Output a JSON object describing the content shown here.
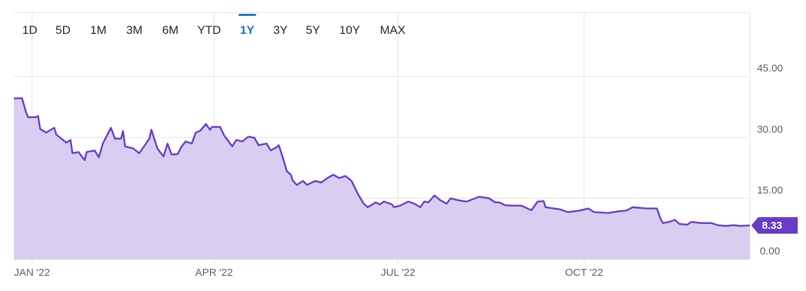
{
  "toolbar": {
    "buttons": [
      "1D",
      "5D",
      "1M",
      "3M",
      "6M",
      "YTD",
      "1Y",
      "3Y",
      "5Y",
      "10Y",
      "MAX"
    ],
    "active_index": 6
  },
  "chart_data": {
    "type": "area",
    "x": [
      -8,
      -4,
      -2,
      -1,
      3,
      4,
      5,
      8,
      12,
      13,
      18,
      20,
      21,
      24,
      27,
      28,
      32,
      34,
      36,
      40,
      42,
      45,
      46,
      47,
      51,
      54,
      59,
      60,
      63,
      66,
      68,
      70,
      73,
      75,
      77,
      80,
      82,
      84,
      87,
      89,
      90,
      94,
      96,
      100,
      102,
      105,
      108,
      111,
      113,
      117,
      119,
      122,
      123,
      125,
      127,
      129,
      130,
      132,
      135,
      137,
      141,
      144,
      147,
      150,
      153,
      156,
      159,
      162,
      165,
      167,
      171,
      173,
      175,
      179,
      180,
      183,
      187,
      190,
      193,
      195,
      197,
      200,
      203,
      206,
      208,
      212,
      216,
      219,
      222,
      227,
      230,
      232,
      235,
      238,
      243,
      246,
      248,
      251,
      254,
      255,
      259,
      262,
      266,
      272,
      276,
      279,
      286,
      291,
      295,
      298,
      305,
      308,
      310,
      312,
      313,
      316,
      319,
      321,
      325,
      327,
      332,
      337,
      340,
      344,
      348,
      351,
      356
    ],
    "series": [
      {
        "color": "#6a3bc8",
        "fill": "#d9cef1",
        "values": [
          39.6,
          39.7,
          36.3,
          35.0,
          35.0,
          35.3,
          32.1,
          31.2,
          32.4,
          30.7,
          28.7,
          29.4,
          26.1,
          26.4,
          24.4,
          26.4,
          26.8,
          25.1,
          28.5,
          32.4,
          29.7,
          29.7,
          31.6,
          27.8,
          27.3,
          26.1,
          29.7,
          31.9,
          27.3,
          25.3,
          28.5,
          25.8,
          25.9,
          27.8,
          29.0,
          28.5,
          31.2,
          31.6,
          33.3,
          31.9,
          32.6,
          32.6,
          30.5,
          27.8,
          29.4,
          29.0,
          30.2,
          29.9,
          28.1,
          28.5,
          26.8,
          27.6,
          28.1,
          25.1,
          21.7,
          20.8,
          19.3,
          18.3,
          19.3,
          18.3,
          19.3,
          18.9,
          20.0,
          20.8,
          20.0,
          20.5,
          19.3,
          16.2,
          13.7,
          12.8,
          14.0,
          13.5,
          14.2,
          13.5,
          12.8,
          13.2,
          14.2,
          13.7,
          12.8,
          14.2,
          14.0,
          15.7,
          14.5,
          13.7,
          15.0,
          14.5,
          14.2,
          14.8,
          15.4,
          15.0,
          14.0,
          14.0,
          13.3,
          13.2,
          13.2,
          12.5,
          12.1,
          14.2,
          14.3,
          12.8,
          12.5,
          12.3,
          11.6,
          12.0,
          12.5,
          11.6,
          11.4,
          11.8,
          12.0,
          12.8,
          12.5,
          12.5,
          12.5,
          9.7,
          8.9,
          9.2,
          9.7,
          8.7,
          8.5,
          9.2,
          8.9,
          8.9,
          8.4,
          8.2,
          8.4,
          8.2,
          8.33
        ]
      }
    ],
    "xlim": [
      -8,
      356
    ],
    "xticks": [
      {
        "value": 1,
        "label": "JAN '22"
      },
      {
        "value": 91,
        "label": "APR '22"
      },
      {
        "value": 182,
        "label": "JUL '22"
      },
      {
        "value": 274,
        "label": "OCT '22"
      }
    ],
    "ylim": [
      0,
      60.8
    ],
    "yticks": [
      {
        "value": 0,
        "label": "0.00"
      },
      {
        "value": 15,
        "label": "15.00"
      },
      {
        "value": 30,
        "label": "30.00"
      },
      {
        "value": 45,
        "label": "45.00"
      }
    ],
    "grid": true
  }
}
